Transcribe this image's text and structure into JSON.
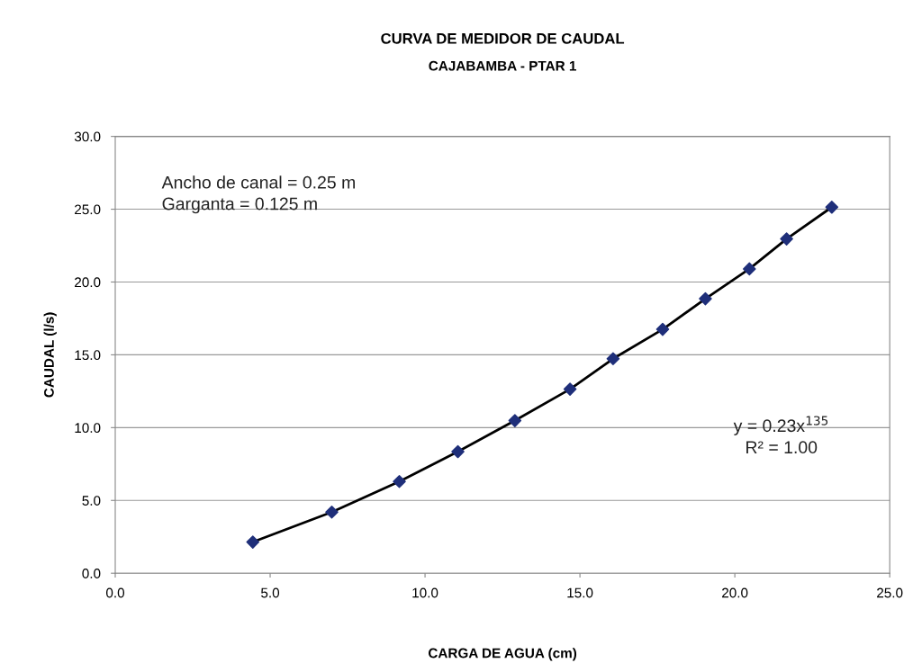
{
  "chart_data": {
    "type": "scatter",
    "title": "CURVA DE MEDIDOR DE CAUDAL",
    "subtitle": "CAJABAMBA - PTAR 1",
    "xlabel": "CARGA DE AGUA (cm)",
    "ylabel": "CAUDAL (l/s)",
    "x": [
      4.44,
      6.99,
      9.17,
      11.06,
      12.9,
      14.68,
      16.07,
      17.67,
      19.05,
      20.47,
      21.67,
      23.13
    ],
    "series": [
      {
        "type": "line",
        "color": "#000000",
        "marker": "none",
        "values": [
          2.14,
          4.2,
          6.3,
          8.35,
          10.48,
          12.64,
          14.73,
          16.75,
          18.85,
          20.9,
          22.96,
          25.14
        ]
      },
      {
        "color": "#1f2f7a",
        "marker": "diamond",
        "values": [
          2.14,
          4.2,
          6.3,
          8.35,
          10.48,
          12.64,
          14.73,
          16.75,
          18.85,
          20.9,
          22.96,
          25.14
        ]
      }
    ],
    "xlim": [
      0,
      25
    ],
    "xticks": [
      {
        "value": 0,
        "label": "0.0"
      },
      {
        "value": 5,
        "label": "5.0"
      },
      {
        "value": 10,
        "label": "10.0"
      },
      {
        "value": 15,
        "label": "15.0"
      },
      {
        "value": 20,
        "label": "20.0"
      },
      {
        "value": 25,
        "label": "25.0"
      }
    ],
    "ylim": [
      0,
      30
    ],
    "yticks": [
      {
        "value": 0,
        "label": "0.0"
      },
      {
        "value": 5,
        "label": "5.0"
      },
      {
        "value": 10,
        "label": "10.0"
      },
      {
        "value": 15,
        "label": "15.0"
      },
      {
        "value": 20,
        "label": "20.0"
      },
      {
        "value": 25,
        "label": "25.0"
      },
      {
        "value": 30,
        "label": "30.0"
      }
    ],
    "grid": "y",
    "legend": false,
    "annotations": [
      "Ancho de canal = 0.25 m\nGarganta = 0.125 m",
      "y = 0.23x$^{135}$\nR² = 1.00"
    ]
  }
}
